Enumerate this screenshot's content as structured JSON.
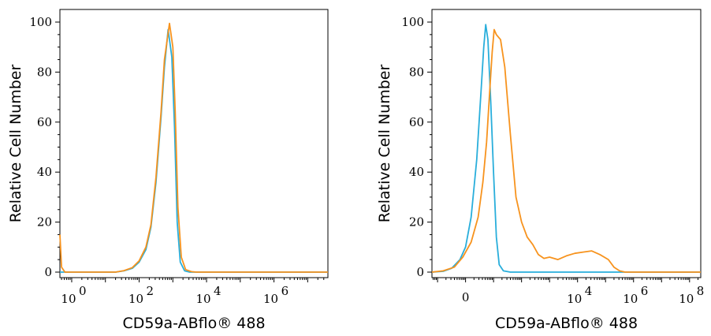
{
  "chart_data": [
    {
      "type": "line",
      "xlabel": "CD59a-ABflo® 488",
      "ylabel": "Relative Cell Number",
      "x_scale": "log",
      "xlim_log10": [
        -0.35,
        7.6
      ],
      "ylim": [
        0,
        100
      ],
      "y_ticks": [
        "0",
        "20",
        "40",
        "60",
        "80",
        "100"
      ],
      "x_ticks": [
        {
          "base": "10",
          "exp": "0",
          "log10": 0
        },
        {
          "base": "10",
          "exp": "2",
          "log10": 2
        },
        {
          "base": "10",
          "exp": "4",
          "log10": 4
        },
        {
          "base": "10",
          "exp": "6",
          "log10": 6
        }
      ],
      "series": [
        {
          "color": "#29aedb",
          "points": [
            [
              -0.35,
              0
            ],
            [
              1.3,
              0
            ],
            [
              1.55,
              0.5
            ],
            [
              1.8,
              1.5
            ],
            [
              2.0,
              4
            ],
            [
              2.2,
              9
            ],
            [
              2.35,
              18
            ],
            [
              2.5,
              36
            ],
            [
              2.65,
              62
            ],
            [
              2.75,
              82
            ],
            [
              2.86,
              97
            ],
            [
              2.97,
              86
            ],
            [
              3.05,
              58
            ],
            [
              3.13,
              20
            ],
            [
              3.22,
              4
            ],
            [
              3.35,
              0.5
            ],
            [
              3.5,
              0
            ],
            [
              7.6,
              0
            ]
          ]
        },
        {
          "color": "#f7931e",
          "points": [
            [
              -0.35,
              15
            ],
            [
              -0.3,
              2
            ],
            [
              -0.2,
              0
            ],
            [
              1.3,
              0
            ],
            [
              1.55,
              0.6
            ],
            [
              1.8,
              1.8
            ],
            [
              2.0,
              4.5
            ],
            [
              2.2,
              10
            ],
            [
              2.35,
              19
            ],
            [
              2.5,
              38
            ],
            [
              2.65,
              64
            ],
            [
              2.75,
              85
            ],
            [
              2.9,
              99.5
            ],
            [
              3.0,
              90
            ],
            [
              3.07,
              64
            ],
            [
              3.15,
              26
            ],
            [
              3.25,
              6
            ],
            [
              3.38,
              1
            ],
            [
              3.55,
              0.2
            ],
            [
              3.7,
              0
            ],
            [
              7.6,
              0
            ]
          ]
        }
      ]
    },
    {
      "type": "line",
      "xlabel": "CD59a-ABflo® 488",
      "ylabel": "Relative Cell Number",
      "x_scale": "log",
      "xlim_log10": [
        -1.2,
        8.4
      ],
      "ylim": [
        0,
        100
      ],
      "y_ticks": [
        "0",
        "20",
        "40",
        "60",
        "80",
        "100"
      ],
      "x_ticks": [
        {
          "base": "0",
          "exp": "",
          "log10": 0
        },
        {
          "base": "10",
          "exp": "4",
          "log10": 4
        },
        {
          "base": "10",
          "exp": "6",
          "log10": 6
        },
        {
          "base": "10",
          "exp": "8",
          "log10": 8
        }
      ],
      "series": [
        {
          "color": "#29aedb",
          "points": [
            [
              -1.2,
              0
            ],
            [
              -0.8,
              0.3
            ],
            [
              -0.5,
              1.5
            ],
            [
              -0.2,
              5
            ],
            [
              0.0,
              10
            ],
            [
              0.2,
              22
            ],
            [
              0.4,
              45
            ],
            [
              0.55,
              72
            ],
            [
              0.65,
              90
            ],
            [
              0.72,
              99
            ],
            [
              0.8,
              93
            ],
            [
              0.9,
              68
            ],
            [
              1.0,
              40
            ],
            [
              1.1,
              14
            ],
            [
              1.2,
              3
            ],
            [
              1.35,
              0.5
            ],
            [
              1.6,
              0
            ],
            [
              8.4,
              0
            ]
          ]
        },
        {
          "color": "#f7931e",
          "points": [
            [
              -1.2,
              0
            ],
            [
              -0.8,
              0.5
            ],
            [
              -0.4,
              2
            ],
            [
              -0.1,
              6
            ],
            [
              0.2,
              12
            ],
            [
              0.45,
              22
            ],
            [
              0.62,
              36
            ],
            [
              0.75,
              52
            ],
            [
              0.85,
              70
            ],
            [
              0.95,
              88
            ],
            [
              1.02,
              97
            ],
            [
              1.1,
              95
            ],
            [
              1.25,
              93
            ],
            [
              1.4,
              82
            ],
            [
              1.6,
              55
            ],
            [
              1.8,
              30
            ],
            [
              2.0,
              20
            ],
            [
              2.2,
              14
            ],
            [
              2.4,
              11
            ],
            [
              2.6,
              7
            ],
            [
              2.8,
              5.5
            ],
            [
              3.0,
              6
            ],
            [
              3.3,
              5
            ],
            [
              3.6,
              6.5
            ],
            [
              3.9,
              7.5
            ],
            [
              4.2,
              8
            ],
            [
              4.5,
              8.5
            ],
            [
              4.8,
              7
            ],
            [
              5.1,
              5
            ],
            [
              5.3,
              2
            ],
            [
              5.5,
              0.5
            ],
            [
              5.7,
              0
            ],
            [
              8.4,
              0
            ]
          ]
        }
      ]
    }
  ]
}
